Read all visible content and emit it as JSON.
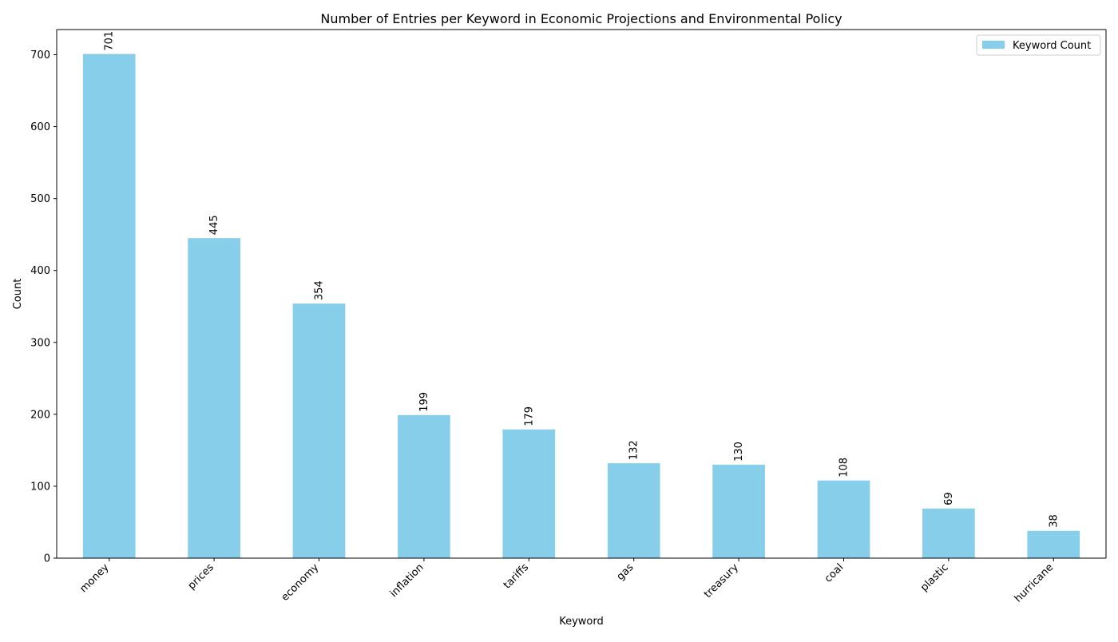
{
  "chart_data": {
    "type": "bar",
    "title": "Number of Entries per Keyword in Economic Projections and Environmental Policy",
    "xlabel": "Keyword",
    "ylabel": "Count",
    "categories": [
      "money",
      "prices",
      "economy",
      "inflation",
      "tariffs",
      "gas",
      "treasury",
      "coal",
      "plastic",
      "hurricane"
    ],
    "series": [
      {
        "name": "Keyword Count",
        "values": [
          701,
          445,
          354,
          199,
          179,
          132,
          130,
          108,
          69,
          38
        ],
        "color": "#87ceeb"
      }
    ],
    "ylim": [
      0,
      735
    ],
    "yticks": [
      0,
      100,
      200,
      300,
      400,
      500,
      600,
      700
    ],
    "grid": false,
    "legend_position": "top-right",
    "data_labels": true
  }
}
